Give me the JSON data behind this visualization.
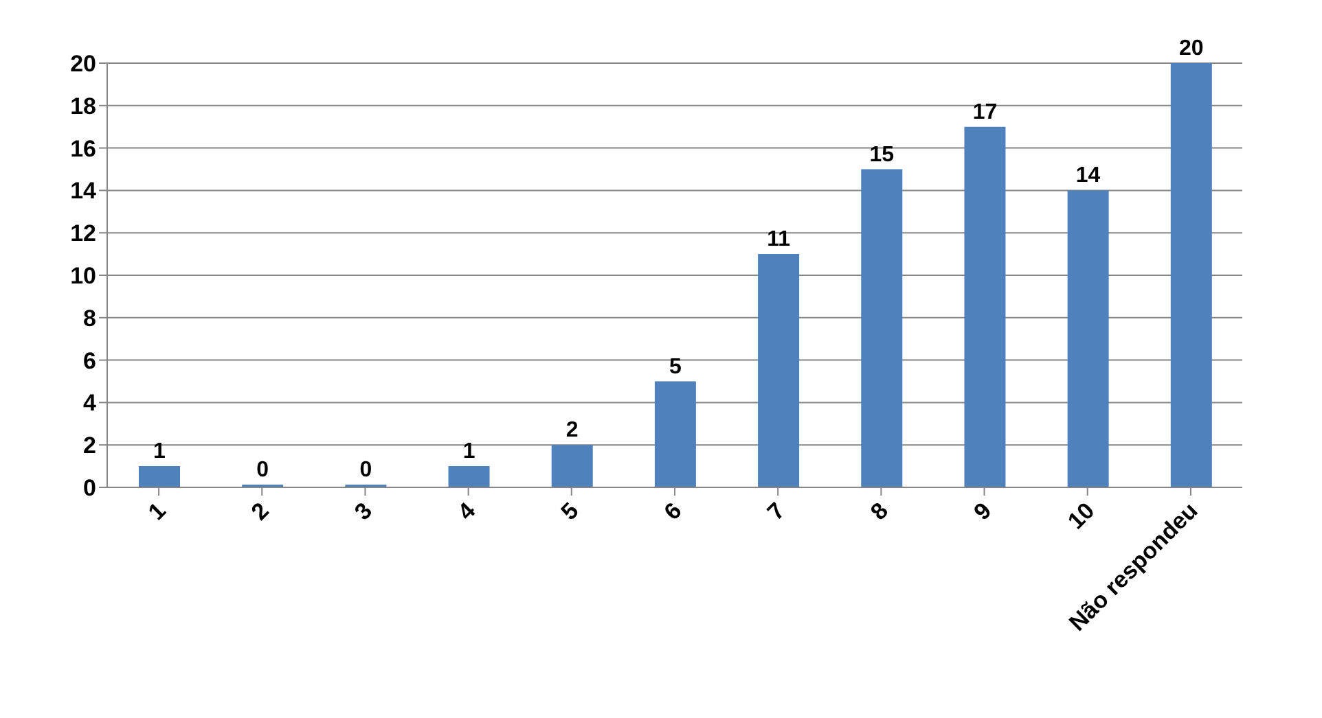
{
  "chart_data": {
    "type": "bar",
    "categories": [
      "1",
      "2",
      "3",
      "4",
      "5",
      "6",
      "7",
      "8",
      "9",
      "10",
      "Não respondeu"
    ],
    "values": [
      1,
      0,
      0,
      1,
      2,
      5,
      11,
      15,
      17,
      14,
      20
    ],
    "color": "#4f81bd",
    "ylim": [
      0,
      20
    ],
    "yticks": [
      0,
      2,
      4,
      6,
      8,
      10,
      12,
      14,
      16,
      18,
      20
    ],
    "grid": "y",
    "data_labels": true
  }
}
